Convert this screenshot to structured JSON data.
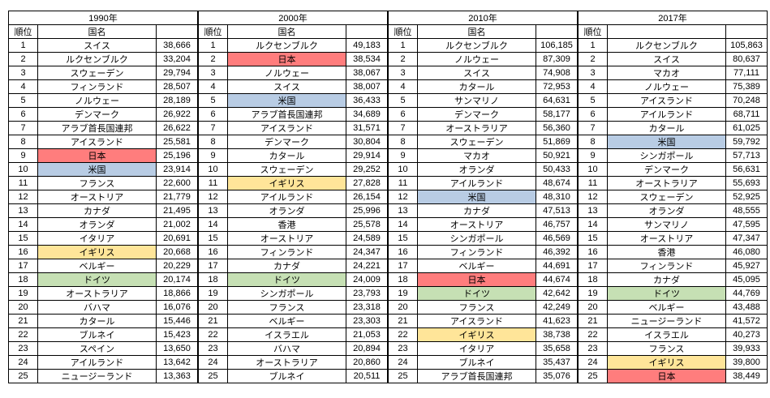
{
  "chart_data": {
    "type": "table",
    "description_note": "",
    "column_headers": {
      "rank": "順位",
      "country": "国名",
      "value": ""
    },
    "highlight_colors": {
      "japan": "#FF7D7D",
      "usa": "#B8CCE4",
      "uk": "#FFE599",
      "germany": "#C6E0B4"
    },
    "sections": [
      {
        "year": "1990年",
        "rank_header": "順位",
        "country_header": "国名",
        "value_header": "",
        "rows": [
          {
            "rank": "1",
            "country": "スイス",
            "value": "38,666",
            "hl": ""
          },
          {
            "rank": "2",
            "country": "ルクセンブルク",
            "value": "33,204",
            "hl": ""
          },
          {
            "rank": "3",
            "country": "スウェーデン",
            "value": "29,794",
            "hl": ""
          },
          {
            "rank": "4",
            "country": "フィンランド",
            "value": "28,507",
            "hl": ""
          },
          {
            "rank": "5",
            "country": "ノルウェー",
            "value": "28,189",
            "hl": ""
          },
          {
            "rank": "6",
            "country": "デンマーク",
            "value": "26,922",
            "hl": ""
          },
          {
            "rank": "7",
            "country": "アラブ首長国連邦",
            "value": "26,622",
            "hl": ""
          },
          {
            "rank": "8",
            "country": "アイスランド",
            "value": "25,581",
            "hl": ""
          },
          {
            "rank": "9",
            "country": "日本",
            "value": "25,196",
            "hl": "japan"
          },
          {
            "rank": "10",
            "country": "米国",
            "value": "23,914",
            "hl": "usa"
          },
          {
            "rank": "11",
            "country": "フランス",
            "value": "22,600",
            "hl": ""
          },
          {
            "rank": "12",
            "country": "オーストリア",
            "value": "21,779",
            "hl": ""
          },
          {
            "rank": "13",
            "country": "カナダ",
            "value": "21,495",
            "hl": ""
          },
          {
            "rank": "14",
            "country": "オランダ",
            "value": "21,002",
            "hl": ""
          },
          {
            "rank": "15",
            "country": "イタリア",
            "value": "20,691",
            "hl": ""
          },
          {
            "rank": "16",
            "country": "イギリス",
            "value": "20,668",
            "hl": "uk"
          },
          {
            "rank": "17",
            "country": "ベルギー",
            "value": "20,229",
            "hl": ""
          },
          {
            "rank": "18",
            "country": "ドイツ",
            "value": "20,174",
            "hl": "germany"
          },
          {
            "rank": "19",
            "country": "オーストラリア",
            "value": "18,866",
            "hl": ""
          },
          {
            "rank": "20",
            "country": "バハマ",
            "value": "16,076",
            "hl": ""
          },
          {
            "rank": "21",
            "country": "カタール",
            "value": "15,446",
            "hl": ""
          },
          {
            "rank": "22",
            "country": "ブルネイ",
            "value": "15,423",
            "hl": ""
          },
          {
            "rank": "23",
            "country": "スペイン",
            "value": "13,650",
            "hl": ""
          },
          {
            "rank": "24",
            "country": "アイルランド",
            "value": "13,642",
            "hl": ""
          },
          {
            "rank": "25",
            "country": "ニュージーランド",
            "value": "13,363",
            "hl": ""
          }
        ]
      },
      {
        "year": "2000年",
        "rank_header": "順位",
        "country_header": "国名",
        "value_header": "",
        "rows": [
          {
            "rank": "1",
            "country": "ルクセンブルク",
            "value": "49,183",
            "hl": ""
          },
          {
            "rank": "2",
            "country": "日本",
            "value": "38,534",
            "hl": "japan"
          },
          {
            "rank": "3",
            "country": "ノルウェー",
            "value": "38,067",
            "hl": ""
          },
          {
            "rank": "4",
            "country": "スイス",
            "value": "38,007",
            "hl": ""
          },
          {
            "rank": "5",
            "country": "米国",
            "value": "36,433",
            "hl": "usa"
          },
          {
            "rank": "6",
            "country": "アラブ首長国連邦",
            "value": "34,689",
            "hl": ""
          },
          {
            "rank": "7",
            "country": "アイスランド",
            "value": "31,571",
            "hl": ""
          },
          {
            "rank": "8",
            "country": "デンマーク",
            "value": "30,804",
            "hl": ""
          },
          {
            "rank": "9",
            "country": "カタール",
            "value": "29,914",
            "hl": ""
          },
          {
            "rank": "10",
            "country": "スウェーデン",
            "value": "29,252",
            "hl": ""
          },
          {
            "rank": "11",
            "country": "イギリス",
            "value": "27,828",
            "hl": "uk"
          },
          {
            "rank": "12",
            "country": "アイルランド",
            "value": "26,154",
            "hl": ""
          },
          {
            "rank": "13",
            "country": "オランダ",
            "value": "25,996",
            "hl": ""
          },
          {
            "rank": "14",
            "country": "香港",
            "value": "25,578",
            "hl": ""
          },
          {
            "rank": "15",
            "country": "オーストリア",
            "value": "24,589",
            "hl": ""
          },
          {
            "rank": "16",
            "country": "フィンランド",
            "value": "24,347",
            "hl": ""
          },
          {
            "rank": "17",
            "country": "カナダ",
            "value": "24,221",
            "hl": ""
          },
          {
            "rank": "18",
            "country": "ドイツ",
            "value": "24,009",
            "hl": "germany"
          },
          {
            "rank": "19",
            "country": "シンガポール",
            "value": "23,793",
            "hl": ""
          },
          {
            "rank": "20",
            "country": "フランス",
            "value": "23,318",
            "hl": ""
          },
          {
            "rank": "21",
            "country": "ベルギー",
            "value": "23,303",
            "hl": ""
          },
          {
            "rank": "22",
            "country": "イスラエル",
            "value": "21,053",
            "hl": ""
          },
          {
            "rank": "23",
            "country": "バハマ",
            "value": "20,894",
            "hl": ""
          },
          {
            "rank": "24",
            "country": "オーストラリア",
            "value": "20,860",
            "hl": ""
          },
          {
            "rank": "25",
            "country": "ブルネイ",
            "value": "20,511",
            "hl": ""
          }
        ]
      },
      {
        "year": "2010年",
        "rank_header": "順位",
        "country_header": "国名",
        "value_header": "",
        "rows": [
          {
            "rank": "1",
            "country": "ルクセンブルク",
            "value": "106,185",
            "hl": ""
          },
          {
            "rank": "2",
            "country": "ノルウェー",
            "value": "87,309",
            "hl": ""
          },
          {
            "rank": "3",
            "country": "スイス",
            "value": "74,908",
            "hl": ""
          },
          {
            "rank": "4",
            "country": "カタール",
            "value": "72,953",
            "hl": ""
          },
          {
            "rank": "5",
            "country": "サンマリノ",
            "value": "64,631",
            "hl": ""
          },
          {
            "rank": "6",
            "country": "デンマーク",
            "value": "58,177",
            "hl": ""
          },
          {
            "rank": "7",
            "country": "オーストラリア",
            "value": "56,360",
            "hl": ""
          },
          {
            "rank": "8",
            "country": "スウェーデン",
            "value": "51,869",
            "hl": ""
          },
          {
            "rank": "9",
            "country": "マカオ",
            "value": "50,921",
            "hl": ""
          },
          {
            "rank": "10",
            "country": "オランダ",
            "value": "50,433",
            "hl": ""
          },
          {
            "rank": "11",
            "country": "アイルランド",
            "value": "48,674",
            "hl": ""
          },
          {
            "rank": "12",
            "country": "米国",
            "value": "48,310",
            "hl": "usa"
          },
          {
            "rank": "13",
            "country": "カナダ",
            "value": "47,513",
            "hl": ""
          },
          {
            "rank": "14",
            "country": "オーストリア",
            "value": "46,757",
            "hl": ""
          },
          {
            "rank": "15",
            "country": "シンガポール",
            "value": "46,569",
            "hl": ""
          },
          {
            "rank": "16",
            "country": "フィンランド",
            "value": "46,392",
            "hl": ""
          },
          {
            "rank": "17",
            "country": "ベルギー",
            "value": "44,691",
            "hl": ""
          },
          {
            "rank": "18",
            "country": "日本",
            "value": "44,674",
            "hl": "japan"
          },
          {
            "rank": "19",
            "country": "ドイツ",
            "value": "42,642",
            "hl": "germany"
          },
          {
            "rank": "20",
            "country": "フランス",
            "value": "42,249",
            "hl": ""
          },
          {
            "rank": "21",
            "country": "アイスランド",
            "value": "41,623",
            "hl": ""
          },
          {
            "rank": "22",
            "country": "イギリス",
            "value": "38,738",
            "hl": "uk"
          },
          {
            "rank": "23",
            "country": "イタリア",
            "value": "35,658",
            "hl": ""
          },
          {
            "rank": "24",
            "country": "ブルネイ",
            "value": "35,437",
            "hl": ""
          },
          {
            "rank": "25",
            "country": "アラブ首長国連邦",
            "value": "35,076",
            "hl": ""
          }
        ]
      },
      {
        "year": "2017年",
        "rank_header": "順位",
        "country_header": "",
        "value_header": "",
        "rows": [
          {
            "rank": "1",
            "country": "ルクセンブルク",
            "value": "105,863",
            "hl": ""
          },
          {
            "rank": "2",
            "country": "スイス",
            "value": "80,637",
            "hl": ""
          },
          {
            "rank": "3",
            "country": "マカオ",
            "value": "77,111",
            "hl": ""
          },
          {
            "rank": "4",
            "country": "ノルウェー",
            "value": "75,389",
            "hl": ""
          },
          {
            "rank": "5",
            "country": "アイスランド",
            "value": "70,248",
            "hl": ""
          },
          {
            "rank": "6",
            "country": "アイルランド",
            "value": "68,711",
            "hl": ""
          },
          {
            "rank": "7",
            "country": "カタール",
            "value": "61,025",
            "hl": ""
          },
          {
            "rank": "8",
            "country": "米国",
            "value": "59,792",
            "hl": "usa"
          },
          {
            "rank": "9",
            "country": "シンガポール",
            "value": "57,713",
            "hl": ""
          },
          {
            "rank": "10",
            "country": "デンマーク",
            "value": "56,631",
            "hl": ""
          },
          {
            "rank": "11",
            "country": "オーストラリア",
            "value": "55,693",
            "hl": ""
          },
          {
            "rank": "12",
            "country": "スウェーデン",
            "value": "52,925",
            "hl": ""
          },
          {
            "rank": "13",
            "country": "オランダ",
            "value": "48,555",
            "hl": ""
          },
          {
            "rank": "14",
            "country": "サンマリノ",
            "value": "47,595",
            "hl": ""
          },
          {
            "rank": "15",
            "country": "オーストリア",
            "value": "47,347",
            "hl": ""
          },
          {
            "rank": "16",
            "country": "香港",
            "value": "46,080",
            "hl": ""
          },
          {
            "rank": "17",
            "country": "フィンランド",
            "value": "45,927",
            "hl": ""
          },
          {
            "rank": "18",
            "country": "カナダ",
            "value": "45,095",
            "hl": ""
          },
          {
            "rank": "19",
            "country": "ドイツ",
            "value": "44,769",
            "hl": "germany"
          },
          {
            "rank": "20",
            "country": "ベルギー",
            "value": "43,488",
            "hl": ""
          },
          {
            "rank": "21",
            "country": "ニュージーランド",
            "value": "41,572",
            "hl": ""
          },
          {
            "rank": "22",
            "country": "イスラエル",
            "value": "40,273",
            "hl": ""
          },
          {
            "rank": "23",
            "country": "フランス",
            "value": "39,933",
            "hl": ""
          },
          {
            "rank": "24",
            "country": "イギリス",
            "value": "39,800",
            "hl": "uk"
          },
          {
            "rank": "25",
            "country": "日本",
            "value": "38,449",
            "hl": "japan"
          }
        ]
      }
    ]
  }
}
